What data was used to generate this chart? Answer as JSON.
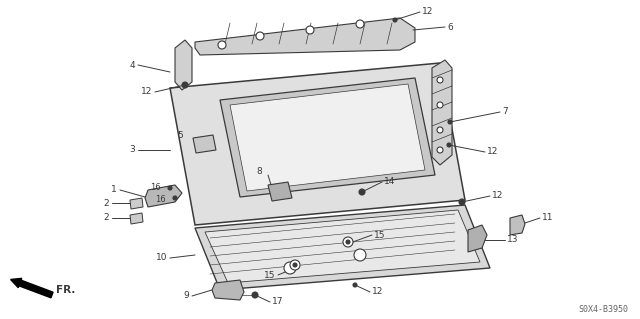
{
  "bg_color": "#ffffff",
  "lc": "#3a3a3a",
  "diagram_code": "S0X4-B3950",
  "figsize": [
    6.4,
    3.19
  ],
  "dpi": 100
}
